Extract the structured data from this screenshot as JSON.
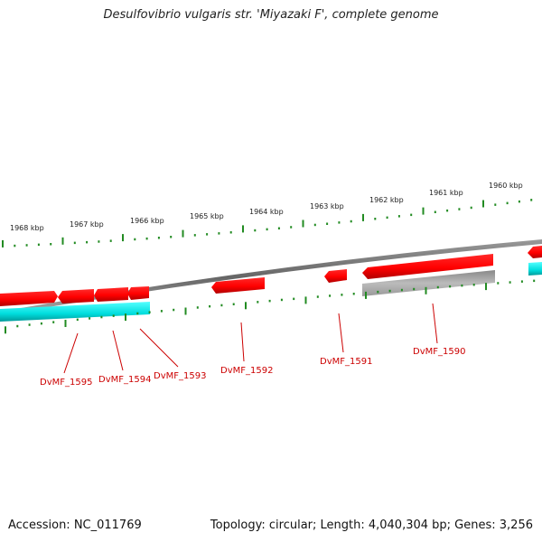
{
  "title": "Desulfovibrio vulgaris str. 'Miyazaki F', complete genome",
  "footer": {
    "accession": "Accession: NC_011769",
    "summary": "Topology: circular; Length: 4,040,304 bp; Genes: 3,256"
  },
  "scale_labels": [
    "1968 kbp",
    "1967 kbp",
    "1966 kbp",
    "1965 kbp",
    "1964 kbp",
    "1963 kbp",
    "1962 kbp",
    "1961 kbp",
    "1960 kbp"
  ],
  "gene_labels": [
    "DvMF_1595",
    "DvMF_1594",
    "DvMF_1593",
    "DvMF_1592",
    "DvMF_1591",
    "DvMF_1590"
  ],
  "colors": {
    "forward_gene": "#ff0000",
    "reverse_cds": "#00e0e0",
    "reverse_other": "#b8b8b8",
    "backbone": "#888888",
    "ticks": "#228b22",
    "label": "#cc0000"
  }
}
